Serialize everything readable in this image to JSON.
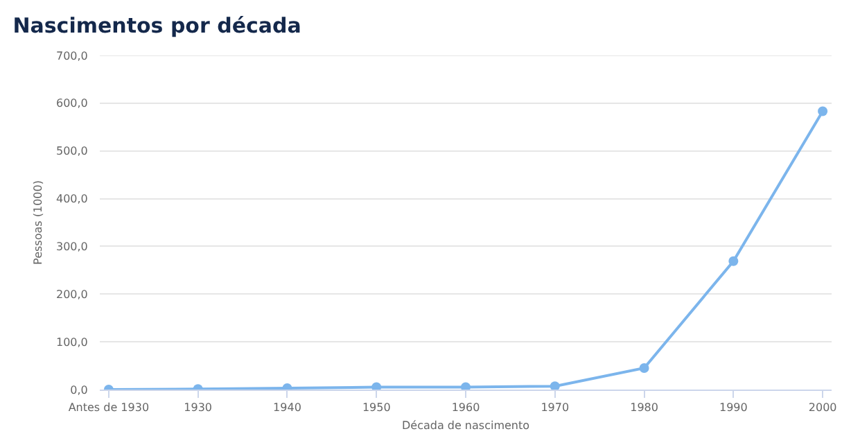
{
  "chart_data": {
    "type": "line",
    "title": "Nascimentos por década",
    "xlabel": "Década de nascimento",
    "ylabel": "Pessoas (1000)",
    "categories": [
      "Antes de 1930",
      "1930",
      "1940",
      "1950",
      "1960",
      "1970",
      "1980",
      "1990",
      "2000"
    ],
    "series": [
      {
        "color": "#7cb5ec",
        "values": [
          0,
          1,
          3,
          5,
          5,
          7,
          45,
          269,
          583
        ]
      }
    ],
    "ylim": [
      0,
      700
    ],
    "yticks": [
      {
        "value": 0,
        "label": "0,0"
      },
      {
        "value": 100,
        "label": "100,0"
      },
      {
        "value": 200,
        "label": "200,0"
      },
      {
        "value": 300,
        "label": "300,0"
      },
      {
        "value": 400,
        "label": "400,0"
      },
      {
        "value": 500,
        "label": "500,0"
      },
      {
        "value": 600,
        "label": "600,0"
      },
      {
        "value": 700,
        "label": "700,0"
      }
    ],
    "grid": "y",
    "marker": "circle",
    "line_style": "solid"
  }
}
